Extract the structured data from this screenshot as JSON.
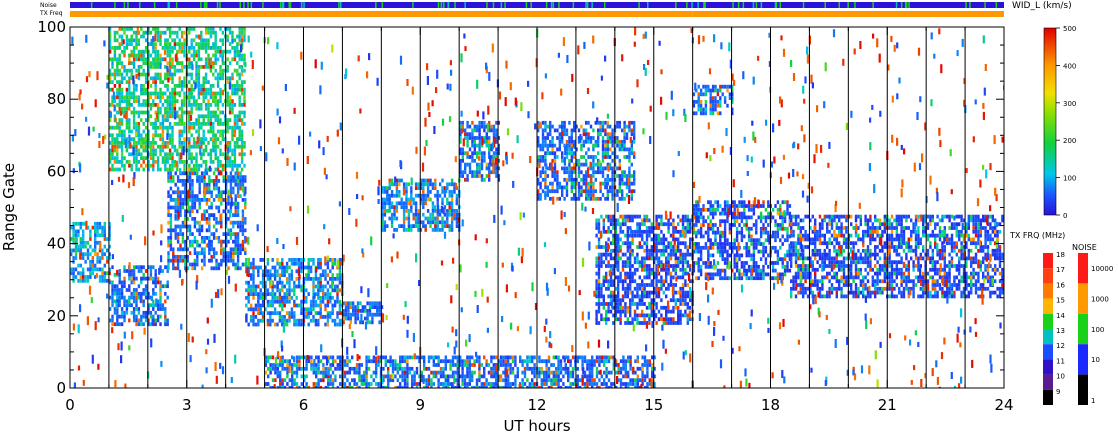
{
  "chart_data": {
    "type": "heatmap",
    "title": "",
    "xlabel": "UT hours",
    "ylabel": "Range Gate",
    "xlim": [
      0,
      24
    ],
    "ylim": [
      0,
      100
    ],
    "x_ticks": [
      0,
      3,
      6,
      9,
      12,
      15,
      18,
      21,
      24
    ],
    "y_ticks": [
      0,
      20,
      40,
      60,
      80,
      100
    ],
    "scan_boundaries_ut": [
      1,
      2,
      3,
      4,
      5,
      6,
      7,
      8,
      9,
      10,
      11,
      12,
      13,
      14,
      15,
      16,
      17,
      18,
      19,
      20,
      21,
      22,
      23
    ],
    "grid": false,
    "colormap": "blue-cyan-green-yellow-orange-red",
    "colorbar": {
      "label": "WID_L (km/s)",
      "range": [
        0,
        500
      ],
      "ticks": [
        0,
        100,
        200,
        300,
        400,
        500
      ]
    },
    "echo_bands": [
      {
        "ut_start": 0.0,
        "ut_end": 1.0,
        "gate_low": 30,
        "gate_high": 46,
        "dominant_width": 100
      },
      {
        "ut_start": 1.0,
        "ut_end": 2.5,
        "gate_low": 18,
        "gate_high": 34,
        "dominant_width": 60
      },
      {
        "ut_start": 2.5,
        "ut_end": 4.5,
        "gate_low": 33,
        "gate_high": 60,
        "dominant_width": 60
      },
      {
        "ut_start": 1.0,
        "ut_end": 4.5,
        "gate_low": 60,
        "gate_high": 100,
        "dominant_width": 200
      },
      {
        "ut_start": 4.5,
        "ut_end": 7.0,
        "gate_low": 18,
        "gate_high": 36,
        "dominant_width": 80
      },
      {
        "ut_start": 7.0,
        "ut_end": 8.0,
        "gate_low": 18,
        "gate_high": 24,
        "dominant_width": 60
      },
      {
        "ut_start": 8.0,
        "ut_end": 10.0,
        "gate_low": 44,
        "gate_high": 58,
        "dominant_width": 80
      },
      {
        "ut_start": 10.0,
        "ut_end": 11.0,
        "gate_low": 58,
        "gate_high": 74,
        "dominant_width": 60
      },
      {
        "ut_start": 12.0,
        "ut_end": 14.5,
        "gate_low": 52,
        "gate_high": 74,
        "dominant_width": 60
      },
      {
        "ut_start": 13.5,
        "ut_end": 16.0,
        "gate_low": 18,
        "gate_high": 48,
        "dominant_width": 40
      },
      {
        "ut_start": 16.0,
        "ut_end": 18.5,
        "gate_low": 30,
        "gate_high": 52,
        "dominant_width": 40
      },
      {
        "ut_start": 18.5,
        "ut_end": 24.0,
        "gate_low": 25,
        "gate_high": 48,
        "dominant_width": 40
      },
      {
        "ut_start": 16.0,
        "ut_end": 17.0,
        "gate_low": 76,
        "gate_high": 84,
        "dominant_width": 60
      },
      {
        "ut_start": 5.0,
        "ut_end": 15.0,
        "gate_low": 0,
        "gate_high": 9,
        "dominant_width": 60
      }
    ],
    "status_bars": {
      "noise_label": "Noise",
      "txfreq_label": "TX Freq",
      "noise_color": "#2a12d8",
      "txfreq_segments": [
        {
          "ut_start": 0,
          "ut_end": 16.0,
          "color": "#ff9900"
        },
        {
          "ut_start": 16.0,
          "ut_end": 24,
          "color": "#ff9900"
        }
      ]
    },
    "tx_freq_legend": {
      "label": "TX FRQ (MHz)",
      "values": [
        18,
        17,
        16,
        15,
        14,
        13,
        12,
        11,
        10,
        9
      ],
      "colors": [
        "#ff1a1a",
        "#ff4010",
        "#ff7a00",
        "#ffb400",
        "#19d119",
        "#00c0c0",
        "#1a4dff",
        "#3010c8",
        "#5a1a90",
        "#000000"
      ]
    },
    "noise_legend": {
      "label": "NOISE",
      "values": [
        "10000",
        "1000",
        "100",
        "10",
        "1"
      ],
      "colors": [
        "#ff1a1a",
        "#ff9900",
        "#19d119",
        "#1a2aff",
        "#000000"
      ]
    }
  }
}
